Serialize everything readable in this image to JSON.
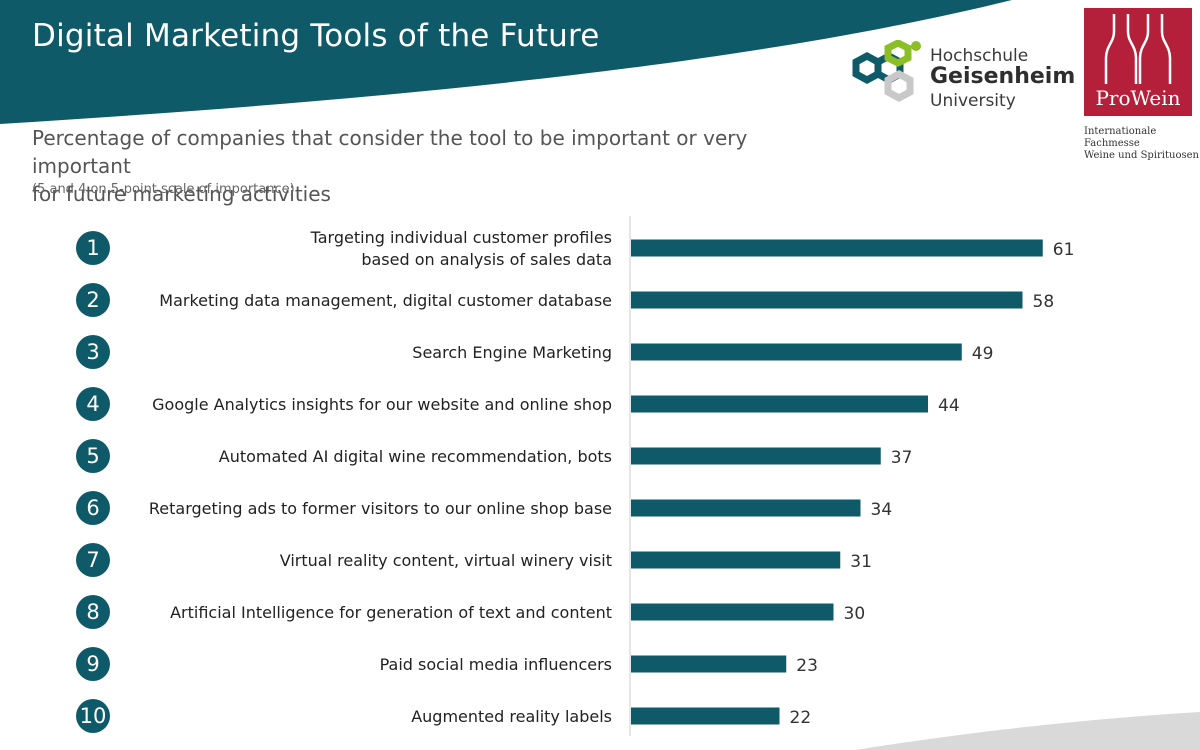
{
  "header": {
    "title": "Digital Marketing Tools of the Future",
    "band_color": "#0f5a68"
  },
  "logos": {
    "hgu": {
      "line1": "Hochschule",
      "line2": "Geisenheim",
      "line3": "University"
    },
    "prowein": {
      "name": "ProWein",
      "tagline_line1": "Internationale Fachmesse",
      "tagline_line2": "Weine und Spirituosen",
      "color": "#b4203a"
    }
  },
  "subtitle": {
    "line1": "Percentage of companies that consider the tool to be important or very important",
    "line2": "for future marketing activities",
    "note": "(5 and 4 on 5-point scale of importance)"
  },
  "chart_data": {
    "type": "bar",
    "orientation": "horizontal",
    "bar_color": "#0f5a68",
    "xlim": [
      0,
      100
    ],
    "grid": false,
    "ranks": [
      "1",
      "2",
      "3",
      "4",
      "5",
      "6",
      "7",
      "8",
      "9",
      "10"
    ],
    "categories": [
      [
        "Targeting individual customer profiles",
        "based on analysis of sales data"
      ],
      [
        "Marketing data management, digital customer database"
      ],
      [
        "Search Engine Marketing"
      ],
      [
        "Google Analytics insights for our website  and online shop"
      ],
      [
        "Automated AI digital wine recommendation, bots"
      ],
      [
        "Retargeting ads to former visitors to our online shop base"
      ],
      [
        "Virtual reality content, virtual winery visit"
      ],
      [
        "Artificial Intelligence for generation of text and content"
      ],
      [
        "Paid social media influencers"
      ],
      [
        "Augmented reality labels"
      ]
    ],
    "values": [
      61,
      58,
      49,
      44,
      37,
      34,
      31,
      30,
      23,
      22
    ]
  }
}
